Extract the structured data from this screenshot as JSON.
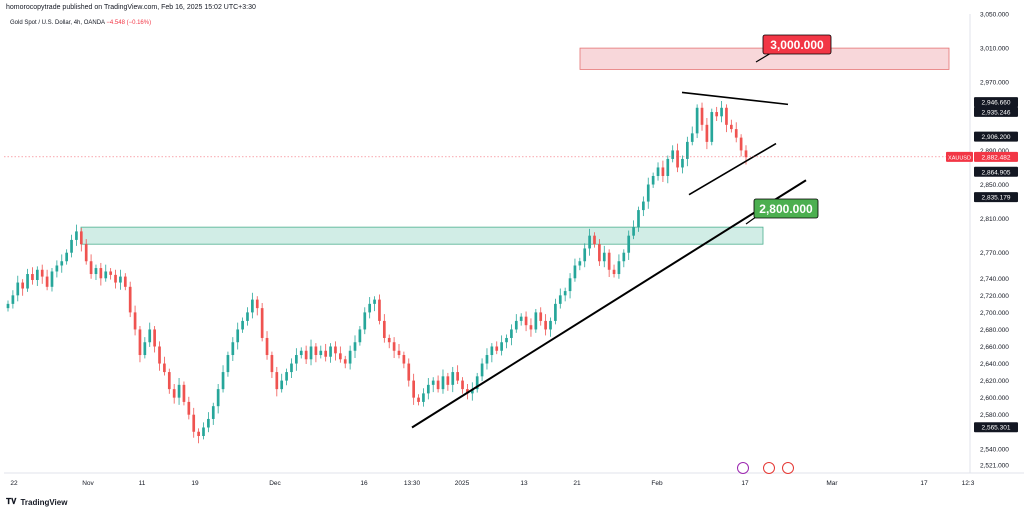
{
  "header": {
    "published": "homorocopytrade published on TradingView.com, Feb 16, 2025 15:02 UTC+3:30",
    "symbol": "Gold Spot / U.S. Dollar, 4h, OANDA",
    "change": "−4.548 (−0.16%)"
  },
  "footer": {
    "brand": "TradingView",
    "logo_icon": "tradingview-logo-icon"
  },
  "colors": {
    "up": "#26a69a",
    "down": "#ef5350",
    "resistance_fill": "#f8d7da",
    "resistance_stroke": "#e57373",
    "support_fill": "#d1ede6",
    "support_stroke": "#4caf8f",
    "label_red": "#f23645",
    "label_green": "#4caf50"
  },
  "chart_data": {
    "type": "candlestick",
    "symbol": "XAUUSD",
    "timeframe": "4h",
    "ylim": [
      2521,
      3050
    ],
    "y_ticks": [
      "3,050.000",
      "3,010.000",
      "2,970.000",
      "2,890.000",
      "2,850.000",
      "2,810.000",
      "2,770.000",
      "2,740.000",
      "2,720.000",
      "2,700.000",
      "2,680.000",
      "2,660.000",
      "2,640.000",
      "2,620.000",
      "2,600.000",
      "2,580.000",
      "2,540.000",
      "2,521.000"
    ],
    "x_ticks": [
      "22",
      "Nov",
      "11",
      "19",
      "Dec",
      "16",
      "13:30",
      "2025",
      "13",
      "21",
      "Feb",
      "17",
      "Mar",
      "17",
      "12:3"
    ],
    "price_tags": [
      {
        "value": "2,946.660",
        "style": "dark"
      },
      {
        "value": "2,935.246",
        "style": "dark"
      },
      {
        "value": "2,906.200",
        "style": "dark"
      },
      {
        "value": "2,864.905",
        "style": "dark"
      },
      {
        "value": "2,835.179",
        "style": "dark"
      },
      {
        "value": "2,565.301",
        "style": "dark"
      }
    ],
    "current_price": {
      "symbol": "XAUUSD",
      "value": "2,882.482"
    },
    "zones": [
      {
        "name": "resistance",
        "low": 2985,
        "high": 3010,
        "label": "3,000.000"
      },
      {
        "name": "support",
        "low": 2780,
        "high": 2800,
        "label": "2,800.000"
      }
    ],
    "trendlines": [
      {
        "name": "main-support",
        "points": [
          [
            "2024-12-18",
            2565
          ],
          [
            "2025-02-20",
            2865
          ]
        ]
      },
      {
        "name": "channel-lower",
        "points": [
          [
            "2025-02-03",
            2840
          ],
          [
            "2025-02-14",
            2905
          ]
        ]
      },
      {
        "name": "channel-upper",
        "points": [
          [
            "2025-02-03",
            2955
          ],
          [
            "2025-02-14",
            2945
          ]
        ]
      }
    ],
    "close_series": [
      2710,
      2720,
      2735,
      2728,
      2745,
      2738,
      2750,
      2742,
      2730,
      2748,
      2755,
      2760,
      2770,
      2785,
      2795,
      2780,
      2760,
      2745,
      2752,
      2740,
      2748,
      2744,
      2735,
      2742,
      2730,
      2700,
      2680,
      2650,
      2665,
      2680,
      2660,
      2640,
      2630,
      2610,
      2600,
      2615,
      2595,
      2580,
      2560,
      2555,
      2565,
      2575,
      2590,
      2610,
      2630,
      2650,
      2665,
      2680,
      2690,
      2700,
      2715,
      2705,
      2670,
      2650,
      2630,
      2610,
      2620,
      2630,
      2640,
      2650,
      2655,
      2645,
      2660,
      2650,
      2655,
      2648,
      2660,
      2652,
      2645,
      2640,
      2655,
      2665,
      2680,
      2700,
      2710,
      2715,
      2690,
      2670,
      2665,
      2655,
      2650,
      2640,
      2620,
      2600,
      2595,
      2605,
      2615,
      2620,
      2610,
      2625,
      2615,
      2630,
      2620,
      2610,
      2605,
      2610,
      2625,
      2640,
      2650,
      2660,
      2655,
      2665,
      2670,
      2680,
      2690,
      2695,
      2685,
      2680,
      2700,
      2690,
      2680,
      2690,
      2710,
      2720,
      2725,
      2740,
      2755,
      2760,
      2775,
      2790,
      2780,
      2760,
      2770,
      2750,
      2745,
      2760,
      2770,
      2790,
      2800,
      2820,
      2830,
      2850,
      2860,
      2870,
      2860,
      2880,
      2890,
      2870,
      2880,
      2900,
      2910,
      2940,
      2920,
      2900,
      2935,
      2930,
      2940,
      2920,
      2915,
      2905,
      2890,
      2882
    ]
  }
}
